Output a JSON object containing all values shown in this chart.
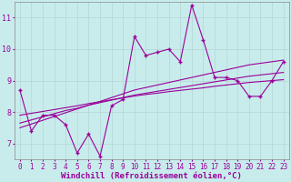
{
  "xlabel": "Windchill (Refroidissement éolien,°C)",
  "background_color": "#c8ecec",
  "line_color": "#990099",
  "grid_color": "#aadddd",
  "x_data": [
    0,
    1,
    2,
    3,
    4,
    5,
    6,
    7,
    8,
    9,
    10,
    11,
    12,
    13,
    14,
    15,
    16,
    17,
    18,
    19,
    20,
    21,
    22,
    23
  ],
  "y_main": [
    8.7,
    7.4,
    7.9,
    7.9,
    7.6,
    6.7,
    7.3,
    6.6,
    8.2,
    8.4,
    10.4,
    9.8,
    9.9,
    10.0,
    9.6,
    11.4,
    10.3,
    9.1,
    9.1,
    9.0,
    8.5,
    8.5,
    9.0,
    9.6
  ],
  "y_linear1": [
    7.5,
    7.62,
    7.74,
    7.86,
    7.98,
    8.1,
    8.22,
    8.34,
    8.46,
    8.58,
    8.7,
    8.78,
    8.86,
    8.94,
    9.02,
    9.1,
    9.18,
    9.26,
    9.34,
    9.42,
    9.5,
    9.55,
    9.6,
    9.65
  ],
  "y_linear2": [
    7.65,
    7.75,
    7.85,
    7.95,
    8.05,
    8.12,
    8.22,
    8.3,
    8.38,
    8.46,
    8.54,
    8.6,
    8.66,
    8.72,
    8.78,
    8.84,
    8.9,
    8.96,
    9.02,
    9.08,
    9.14,
    9.18,
    9.22,
    9.26
  ],
  "y_linear3": [
    7.9,
    7.96,
    8.02,
    8.08,
    8.14,
    8.2,
    8.27,
    8.33,
    8.39,
    8.45,
    8.51,
    8.56,
    8.6,
    8.65,
    8.69,
    8.73,
    8.77,
    8.82,
    8.86,
    8.9,
    8.94,
    8.97,
    9.0,
    9.03
  ],
  "ylim": [
    6.5,
    11.5
  ],
  "yticks": [
    7,
    8,
    9,
    10,
    11
  ],
  "xticks": [
    0,
    1,
    2,
    3,
    4,
    5,
    6,
    7,
    8,
    9,
    10,
    11,
    12,
    13,
    14,
    15,
    16,
    17,
    18,
    19,
    20,
    21,
    22,
    23
  ],
  "tick_fontsize": 5.5,
  "label_fontsize": 6.5
}
